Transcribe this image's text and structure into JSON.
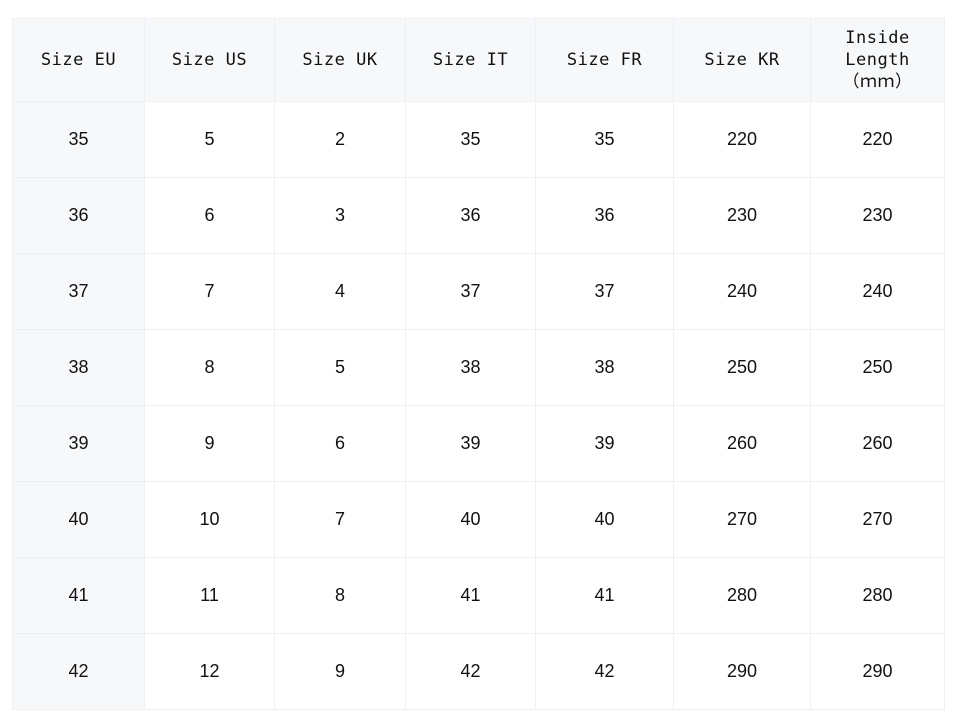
{
  "colors": {
    "header_bg": "#f7f8fa",
    "border": "#eeeff2",
    "text": "#111111"
  },
  "headers": [
    "Size EU",
    "Size US",
    "Size UK",
    "Size IT",
    "Size FR",
    "Size KR",
    "Inside Length"
  ],
  "header_unit": "（ｍｍ）",
  "rows": [
    [
      "35",
      "5",
      "2",
      "35",
      "35",
      "220",
      "220"
    ],
    [
      "36",
      "6",
      "3",
      "36",
      "36",
      "230",
      "230"
    ],
    [
      "37",
      "7",
      "4",
      "37",
      "37",
      "240",
      "240"
    ],
    [
      "38",
      "8",
      "5",
      "38",
      "38",
      "250",
      "250"
    ],
    [
      "39",
      "9",
      "6",
      "39",
      "39",
      "260",
      "260"
    ],
    [
      "40",
      "10",
      "7",
      "40",
      "40",
      "270",
      "270"
    ],
    [
      "41",
      "11",
      "8",
      "41",
      "41",
      "280",
      "280"
    ],
    [
      "42",
      "12",
      "9",
      "42",
      "42",
      "290",
      "290"
    ]
  ]
}
